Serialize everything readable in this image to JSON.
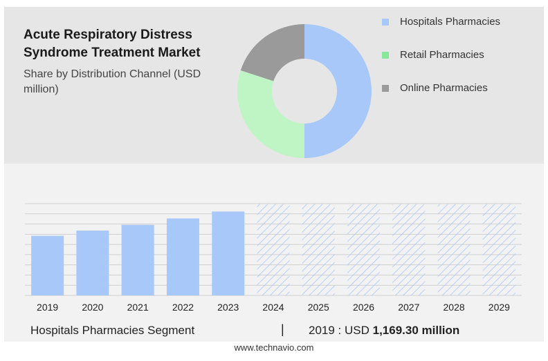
{
  "header": {
    "title": "Acute Respiratory Distress Syndrome Treatment Market",
    "subtitle": "Share by Distribution Channel (USD million)"
  },
  "legend": [
    {
      "label": "Hospitals Pharmacies",
      "color": "#a8c8fa"
    },
    {
      "label": "Retail Pharmacies",
      "color": "#86e89a"
    },
    {
      "label": "Online Pharmacies",
      "color": "#9a9a9a"
    }
  ],
  "chart_data": [
    {
      "type": "pie",
      "variant": "donut",
      "categories": [
        "Hospitals Pharmacies",
        "Retail Pharmacies",
        "Online Pharmacies"
      ],
      "values": [
        50,
        30,
        20
      ],
      "colors": [
        "#a8c8fa",
        "#bff5c4",
        "#9a9a9a"
      ]
    },
    {
      "type": "bar",
      "categories": [
        "2019",
        "2020",
        "2021",
        "2022",
        "2023",
        "2024",
        "2025",
        "2026",
        "2027",
        "2028",
        "2029"
      ],
      "values": [
        1169.3,
        1272,
        1385,
        1510,
        1645,
        1790,
        1790,
        1790,
        1790,
        1790,
        1790
      ],
      "forecast_from": "2024",
      "forecast_values_shown": false,
      "bar_color": "#a8c8fa",
      "forecast_pattern": "hatched",
      "ylim": [
        0,
        1800
      ],
      "grid": true
    }
  ],
  "footer": {
    "segment": "Hospitals Pharmacies Segment",
    "separator": "|",
    "value_prefix": "2019 : USD",
    "value": "1,169.30 million",
    "source": "www.technavio.com"
  }
}
